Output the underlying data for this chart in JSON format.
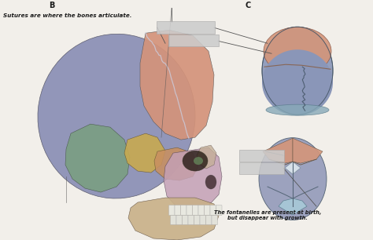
{
  "background_color": "#f2efea",
  "title_B": "B",
  "title_C": "C",
  "label_B_text": "Sutures are where the bones articulate.",
  "label_bottom_text": "The fontanelles are present at birth,\nbut disappear with growth.",
  "text_color": "#1a1a1a",
  "skull": {
    "parietal_color": "#8a8fb5",
    "frontal_color": "#d4937a",
    "temporal_color": "#7a9e80",
    "sphenoid_color": "#c8aa50",
    "zygomatic_color": "#c89060",
    "maxilla_color": "#c4a0b5",
    "mandible_color": "#c8b088",
    "nasal_color": "#c4a0b5",
    "orbit_color": "#2a2020",
    "suture_color": "#aaaacc"
  },
  "infant1": {
    "parietal_color": "#8a96b8",
    "frontal_color": "#d4957a",
    "bottom_color": "#7ab0c0",
    "suture_color": "#555566"
  },
  "infant2": {
    "parietal_color": "#9098b8",
    "frontal_color": "#d4957a",
    "fontanelle_color": "#c8dde8",
    "suture_color": "#556677"
  },
  "label_box_color": "#cccccc",
  "line_color": "#555555"
}
